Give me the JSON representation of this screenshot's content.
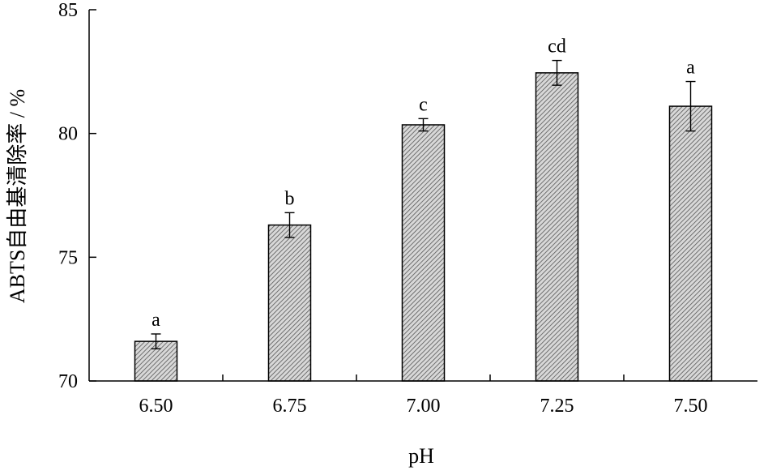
{
  "chart_data": {
    "type": "bar",
    "categories": [
      "6.50",
      "6.75",
      "7.00",
      "7.25",
      "7.50"
    ],
    "values": [
      71.6,
      76.3,
      80.35,
      82.45,
      81.1
    ],
    "errors": [
      0.3,
      0.5,
      0.25,
      0.5,
      1.0
    ],
    "significance": [
      "a",
      "b",
      "c",
      "cd",
      "a"
    ],
    "xlabel": "pH",
    "ylabel": "ABTS自由基清除率 / %",
    "ylim": [
      70,
      85
    ],
    "yticks": [
      "70",
      "75",
      "80",
      "85"
    ],
    "grid": false,
    "legend": "none",
    "bar_fill": "hatched",
    "colors": {
      "bar_stroke": "#000000",
      "hatch": "#555555",
      "bar_bg": "#d8d8d8"
    }
  }
}
